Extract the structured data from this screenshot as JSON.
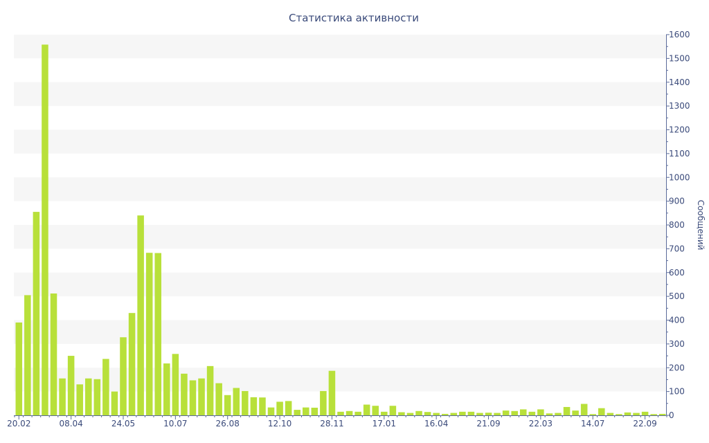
{
  "colors": {
    "bar": "#b8e03a",
    "band": "#f6f6f6",
    "axis": "#5a6a9a",
    "text": "#3a4a7a"
  },
  "chart_data": {
    "type": "bar",
    "title": "Статистика активности",
    "ylabel": "Сообщений",
    "xlabel": "",
    "y_axis_position": "right",
    "ylim": [
      0,
      1600
    ],
    "y_ticks": [
      0,
      100,
      200,
      300,
      400,
      500,
      600,
      700,
      800,
      900,
      1000,
      1100,
      1200,
      1300,
      1400,
      1500,
      1600
    ],
    "x_tick_labels": [
      {
        "index": 0,
        "label": "20.02"
      },
      {
        "index": 6,
        "label": "08.04"
      },
      {
        "index": 12,
        "label": "24.05"
      },
      {
        "index": 18,
        "label": "10.07"
      },
      {
        "index": 24,
        "label": "26.08"
      },
      {
        "index": 30,
        "label": "12.10"
      },
      {
        "index": 36,
        "label": "28.11"
      },
      {
        "index": 42,
        "label": "17.01"
      },
      {
        "index": 48,
        "label": "16.04"
      },
      {
        "index": 54,
        "label": "21.09"
      },
      {
        "index": 60,
        "label": "22.03"
      },
      {
        "index": 66,
        "label": "14.07"
      },
      {
        "index": 72,
        "label": "22.09"
      }
    ],
    "grid": "alternating horizontal bands",
    "values": [
      390,
      505,
      855,
      1558,
      512,
      155,
      250,
      130,
      155,
      152,
      237,
      100,
      328,
      430,
      840,
      683,
      682,
      218,
      258,
      175,
      147,
      155,
      207,
      135,
      85,
      115,
      102,
      76,
      75,
      33,
      57,
      60,
      23,
      33,
      32,
      102,
      187,
      15,
      18,
      15,
      45,
      40,
      15,
      40,
      13,
      10,
      18,
      14,
      10,
      6,
      10,
      15,
      15,
      10,
      11,
      10,
      20,
      18,
      25,
      15,
      25,
      8,
      10,
      35,
      20,
      48,
      5,
      30,
      10,
      5,
      12,
      10,
      15,
      5,
      6
    ]
  }
}
